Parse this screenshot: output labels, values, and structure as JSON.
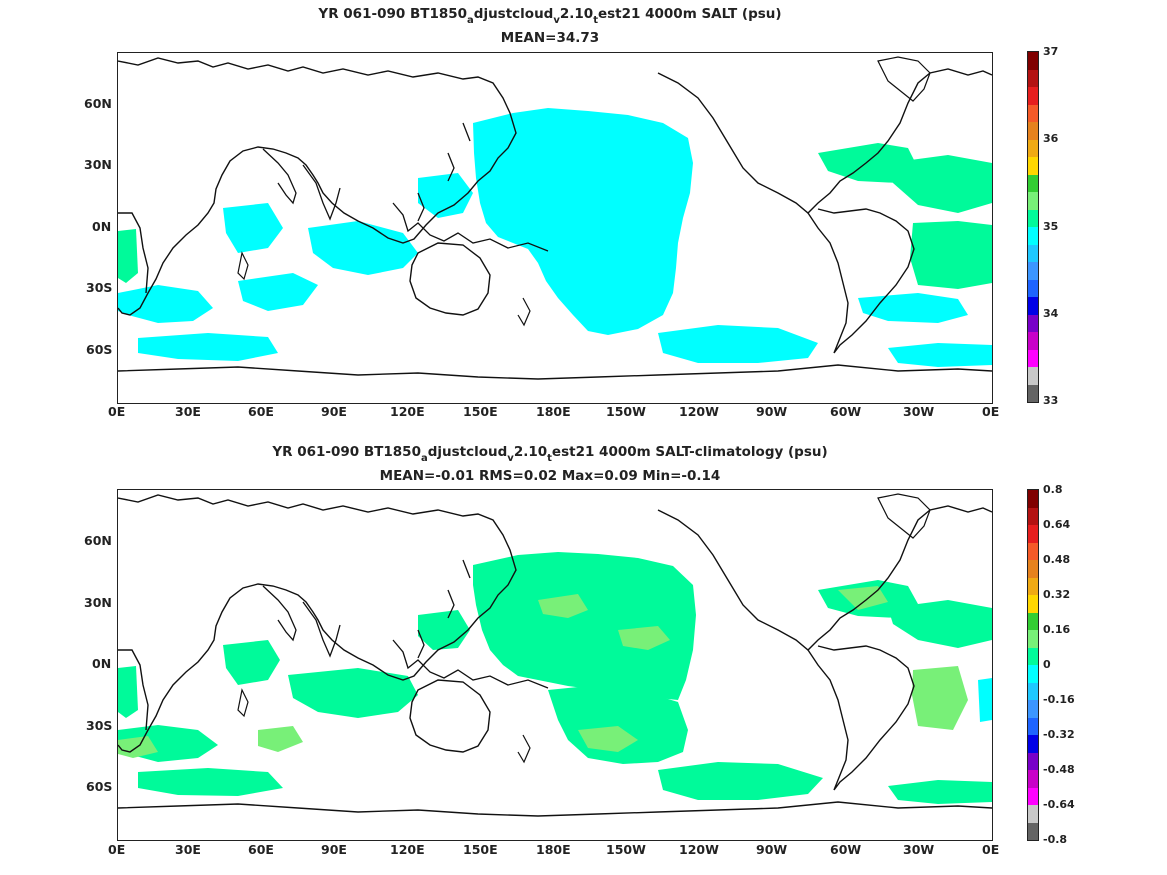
{
  "panels": [
    {
      "title_parts": [
        "YR 061-090 BT1850",
        "a",
        "djustcloud",
        "v",
        "2.10",
        "t",
        "est21 4000m SALT (psu)"
      ],
      "subtitle": "MEAN=34.73",
      "colorbar_labels": [
        "37",
        "36",
        "35",
        "34",
        "33"
      ],
      "colorbar_colors": [
        "#800000",
        "#b31212",
        "#e61e1e",
        "#f55a28",
        "#e6821e",
        "#f0aa14",
        "#ffd700",
        "#32cd32",
        "#78f078",
        "#00fa9a",
        "#00ffff",
        "#1ec8ff",
        "#3c96ff",
        "#1e64ff",
        "#0000e6",
        "#7800c8",
        "#c800c8",
        "#ff00ff",
        "#c8c8c8",
        "#646464"
      ]
    },
    {
      "title_parts": [
        "YR 061-090 BT1850",
        "a",
        "djustcloud",
        "v",
        "2.10",
        "t",
        "est21 4000m SALT-climatology (psu)"
      ],
      "subtitle": "MEAN=-0.01   RMS=0.02   Max=0.09   Min=-0.14",
      "colorbar_labels": [
        "0.8",
        "0.64",
        "0.48",
        "0.32",
        "0.16",
        "0",
        "-0.16",
        "-0.32",
        "-0.48",
        "-0.64",
        "-0.8"
      ],
      "colorbar_colors": [
        "#800000",
        "#b31212",
        "#e61e1e",
        "#f55a28",
        "#e6821e",
        "#f0aa14",
        "#ffd700",
        "#32cd32",
        "#78f078",
        "#00fa9a",
        "#00ffff",
        "#1ec8ff",
        "#3c96ff",
        "#1e64ff",
        "#0000e6",
        "#7800c8",
        "#c800c8",
        "#ff00ff",
        "#c8c8c8",
        "#646464"
      ]
    }
  ],
  "lat_labels": [
    "60N",
    "30N",
    "0N",
    "30S",
    "60S"
  ],
  "lon_labels": [
    "0E",
    "30E",
    "60E",
    "90E",
    "120E",
    "150E",
    "180E",
    "150W",
    "120W",
    "90W",
    "60W",
    "30W",
    "0E"
  ],
  "fill_colors": {
    "salt_cyan": "#00ffff",
    "salt_green": "#00fa9a",
    "diff_green": "#00fa9a",
    "diff_lightgreen": "#78f078",
    "diff_cyan": "#00ffff"
  }
}
